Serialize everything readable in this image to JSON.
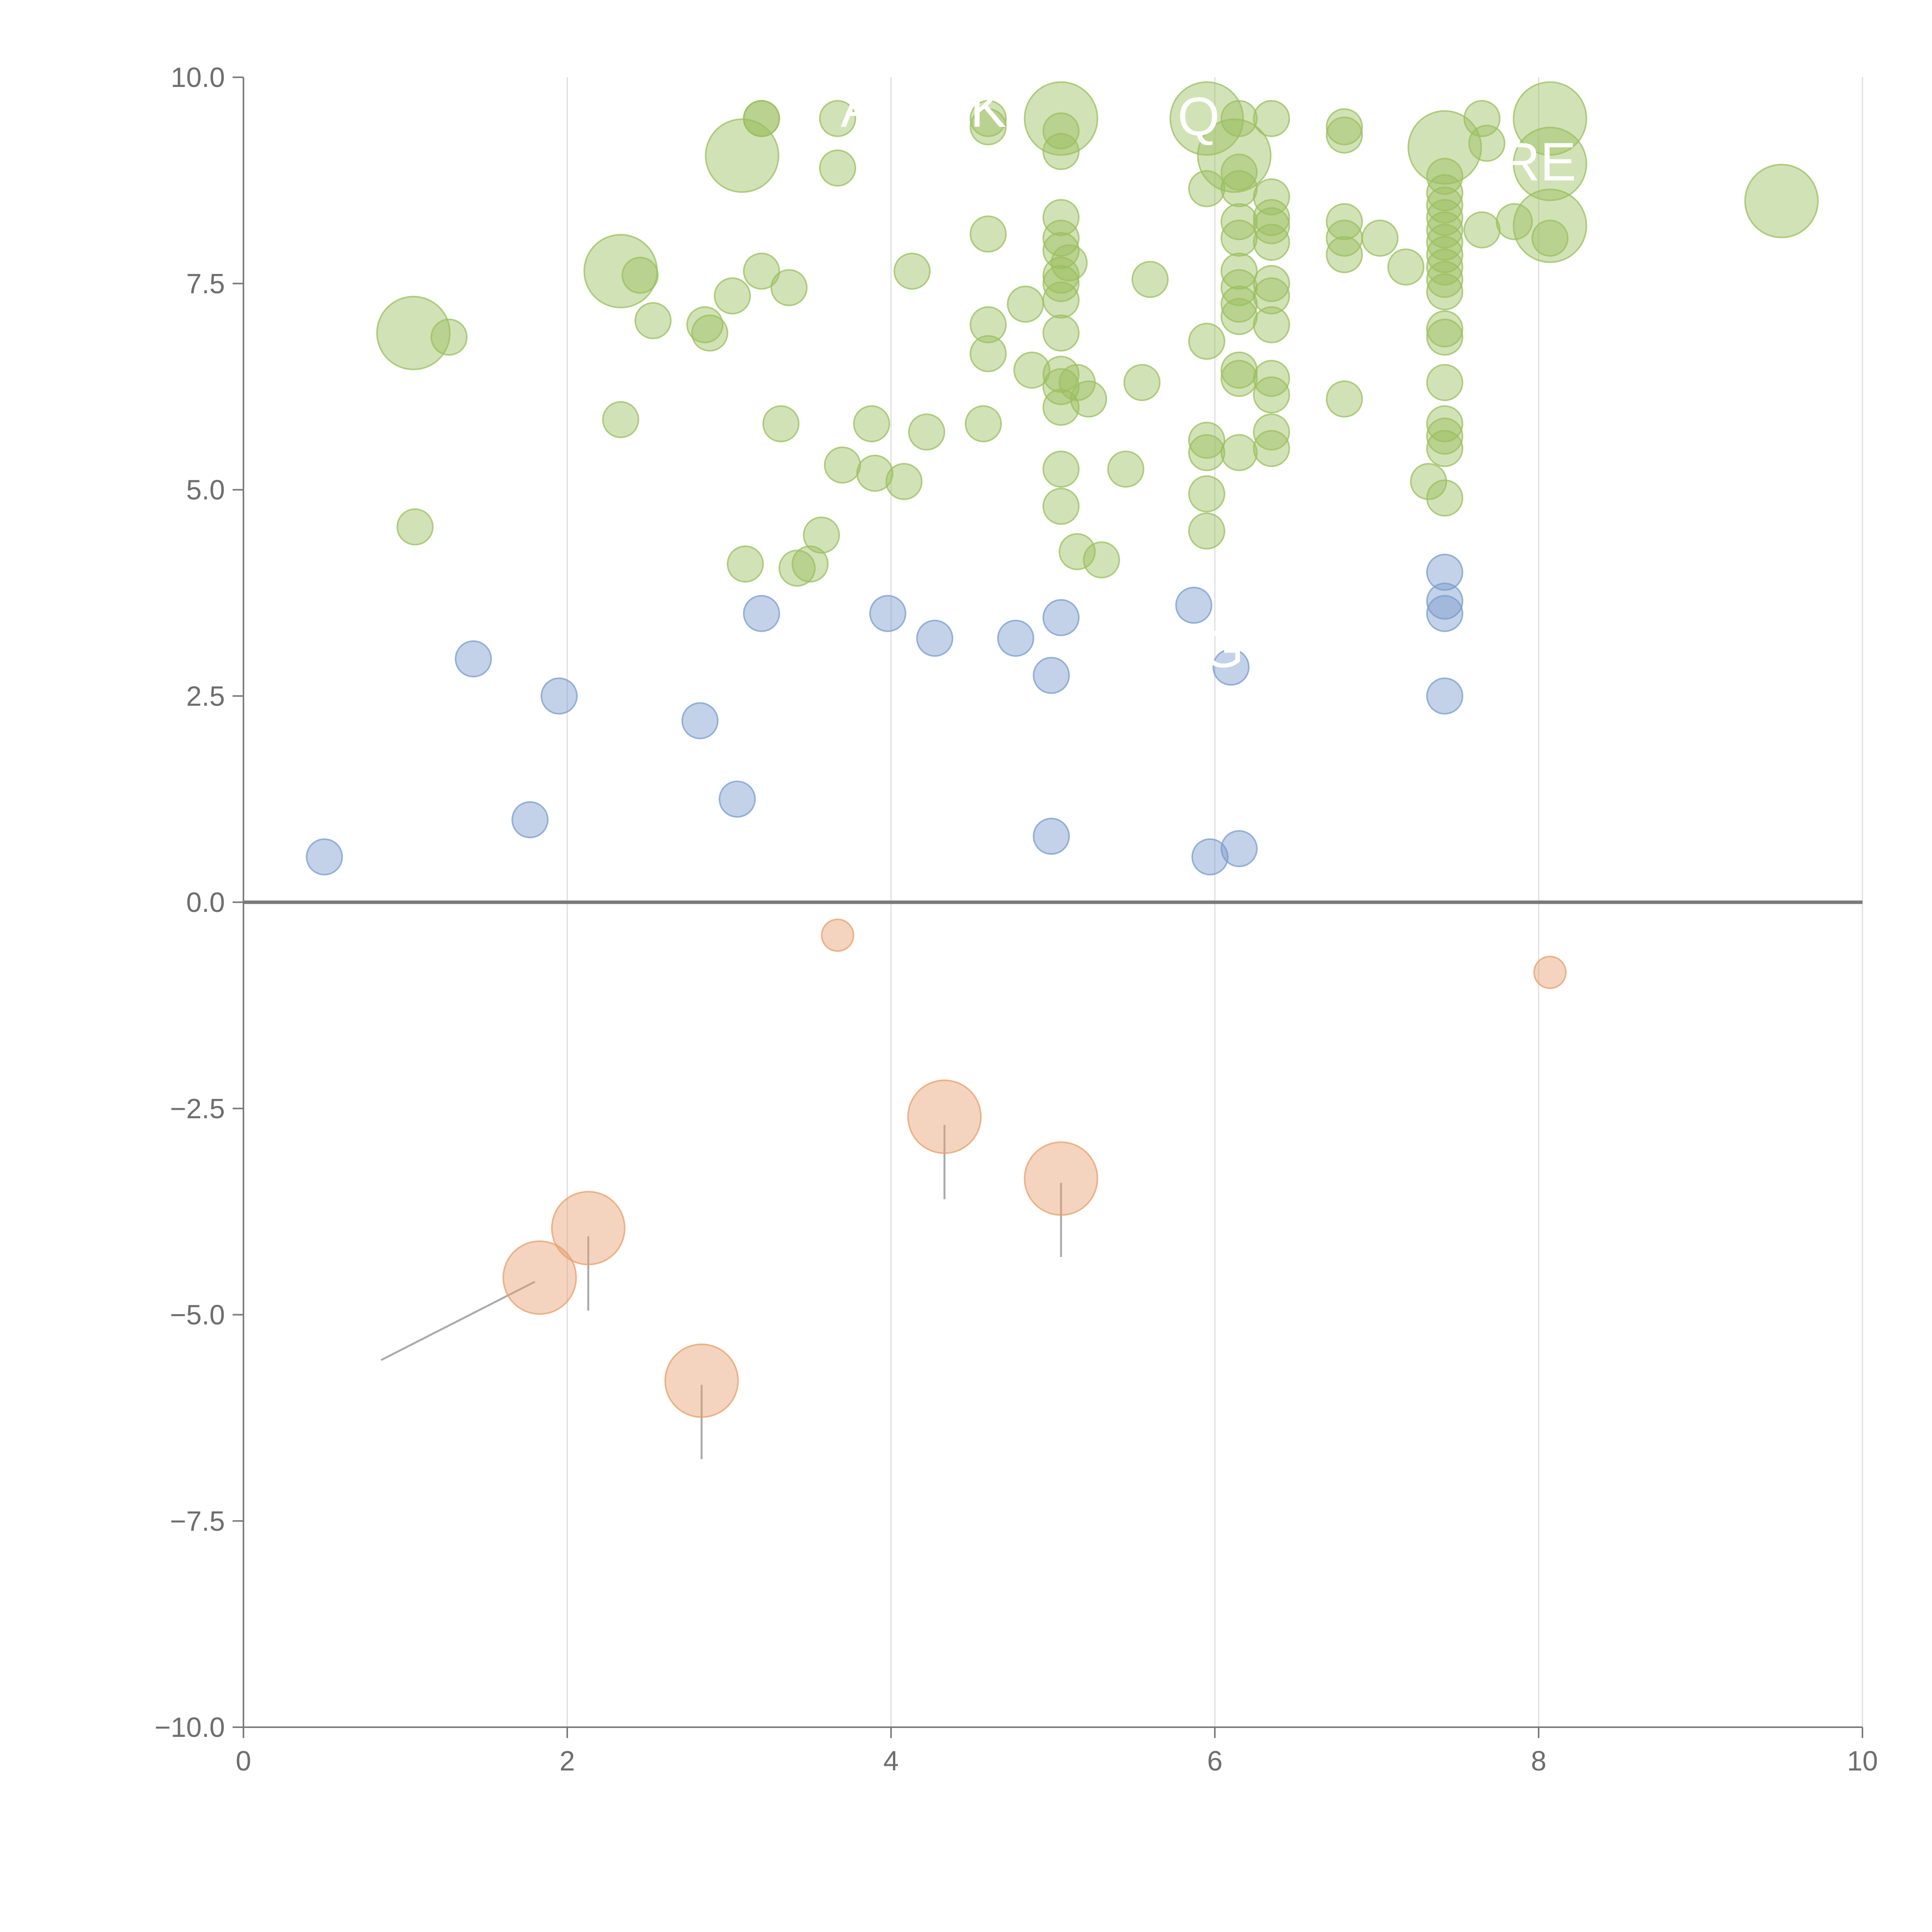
{
  "chart_data": {
    "type": "scatter",
    "title": "",
    "xlabel": "",
    "ylabel": "",
    "xlim": [
      0,
      10
    ],
    "ylim": [
      -10,
      10
    ],
    "xticks": [
      0,
      2,
      4,
      6,
      8,
      10
    ],
    "yticks": [
      -10,
      -7.5,
      -5,
      -2.5,
      0,
      2.5,
      5,
      7.5,
      10
    ],
    "xtick_labels": [
      "0",
      "2",
      "4",
      "6",
      "8",
      "10"
    ],
    "ytick_labels": [
      "−10.0",
      "−7.5",
      "−5.0",
      "−2.5",
      "0.0",
      "2.5",
      "5.0",
      "7.5",
      "10.0"
    ],
    "grid": "vertical",
    "reference_line_y": 0,
    "colors": {
      "green": "#9bbf5f",
      "blue": "#7a9ccd",
      "orange": "#e6a06e"
    },
    "series": [
      {
        "name": "green",
        "color_key": "green",
        "points": [
          {
            "x": 3.2,
            "y": 9.5,
            "s": 1
          },
          {
            "x": 3.2,
            "y": 9.5,
            "s": 1
          },
          {
            "x": 3.67,
            "y": 9.5,
            "s": 1
          },
          {
            "x": 3.67,
            "y": 8.9,
            "s": 1
          },
          {
            "x": 3.08,
            "y": 9.05,
            "s": 2
          },
          {
            "x": 4.6,
            "y": 9.5,
            "s": 1
          },
          {
            "x": 4.6,
            "y": 9.4,
            "s": 1
          },
          {
            "x": 5.05,
            "y": 9.5,
            "s": 2
          },
          {
            "x": 5.05,
            "y": 9.35,
            "s": 1
          },
          {
            "x": 5.05,
            "y": 9.1,
            "s": 1
          },
          {
            "x": 5.95,
            "y": 9.5,
            "s": 2
          },
          {
            "x": 6.15,
            "y": 9.5,
            "s": 1
          },
          {
            "x": 6.35,
            "y": 9.5,
            "s": 1
          },
          {
            "x": 6.12,
            "y": 9.05,
            "s": 2
          },
          {
            "x": 6.8,
            "y": 9.4,
            "s": 1
          },
          {
            "x": 6.8,
            "y": 9.3,
            "s": 1
          },
          {
            "x": 7.42,
            "y": 9.15,
            "s": 2
          },
          {
            "x": 7.65,
            "y": 9.5,
            "s": 1
          },
          {
            "x": 7.68,
            "y": 9.2,
            "s": 1
          },
          {
            "x": 8.07,
            "y": 9.5,
            "s": 2
          },
          {
            "x": 8.07,
            "y": 8.95,
            "s": 2
          },
          {
            "x": 8.07,
            "y": 8.2,
            "s": 2
          },
          {
            "x": 9.5,
            "y": 8.5,
            "s": 2
          },
          {
            "x": 5.95,
            "y": 8.65,
            "s": 1
          },
          {
            "x": 6.15,
            "y": 8.85,
            "s": 1
          },
          {
            "x": 6.15,
            "y": 8.65,
            "s": 1
          },
          {
            "x": 6.35,
            "y": 8.55,
            "s": 1
          },
          {
            "x": 6.35,
            "y": 8.3,
            "s": 1
          },
          {
            "x": 6.35,
            "y": 8.2,
            "s": 1
          },
          {
            "x": 6.35,
            "y": 8.0,
            "s": 1
          },
          {
            "x": 6.15,
            "y": 8.25,
            "s": 1
          },
          {
            "x": 6.15,
            "y": 8.05,
            "s": 1
          },
          {
            "x": 5.05,
            "y": 8.3,
            "s": 1
          },
          {
            "x": 5.05,
            "y": 8.05,
            "s": 1
          },
          {
            "x": 5.05,
            "y": 7.9,
            "s": 1
          },
          {
            "x": 5.1,
            "y": 7.75,
            "s": 1
          },
          {
            "x": 5.05,
            "y": 7.6,
            "s": 1
          },
          {
            "x": 5.05,
            "y": 7.5,
            "s": 1
          },
          {
            "x": 5.05,
            "y": 7.3,
            "s": 1
          },
          {
            "x": 4.6,
            "y": 8.1,
            "s": 1
          },
          {
            "x": 4.13,
            "y": 7.65,
            "s": 1
          },
          {
            "x": 3.2,
            "y": 7.65,
            "s": 1
          },
          {
            "x": 3.37,
            "y": 7.45,
            "s": 1
          },
          {
            "x": 3.02,
            "y": 7.35,
            "s": 1
          },
          {
            "x": 2.33,
            "y": 7.65,
            "s": 2
          },
          {
            "x": 2.45,
            "y": 7.6,
            "s": 1
          },
          {
            "x": 2.53,
            "y": 7.05,
            "s": 1
          },
          {
            "x": 2.85,
            "y": 7.0,
            "s": 1
          },
          {
            "x": 2.88,
            "y": 6.9,
            "s": 1
          },
          {
            "x": 1.05,
            "y": 6.9,
            "s": 2
          },
          {
            "x": 1.27,
            "y": 6.85,
            "s": 1
          },
          {
            "x": 6.8,
            "y": 8.25,
            "s": 1
          },
          {
            "x": 6.8,
            "y": 8.05,
            "s": 1
          },
          {
            "x": 6.8,
            "y": 7.85,
            "s": 1
          },
          {
            "x": 7.02,
            "y": 8.05,
            "s": 1
          },
          {
            "x": 7.18,
            "y": 7.7,
            "s": 1
          },
          {
            "x": 7.42,
            "y": 8.8,
            "s": 1
          },
          {
            "x": 7.42,
            "y": 8.6,
            "s": 1
          },
          {
            "x": 7.42,
            "y": 8.45,
            "s": 1
          },
          {
            "x": 7.42,
            "y": 8.3,
            "s": 1
          },
          {
            "x": 7.42,
            "y": 8.15,
            "s": 1
          },
          {
            "x": 7.42,
            "y": 8.0,
            "s": 1
          },
          {
            "x": 7.42,
            "y": 7.85,
            "s": 1
          },
          {
            "x": 7.42,
            "y": 7.7,
            "s": 1
          },
          {
            "x": 7.42,
            "y": 7.55,
            "s": 1
          },
          {
            "x": 7.42,
            "y": 7.4,
            "s": 1
          },
          {
            "x": 7.42,
            "y": 6.95,
            "s": 1
          },
          {
            "x": 7.42,
            "y": 6.85,
            "s": 1
          },
          {
            "x": 7.65,
            "y": 8.15,
            "s": 1
          },
          {
            "x": 7.85,
            "y": 8.25,
            "s": 1
          },
          {
            "x": 8.07,
            "y": 8.05,
            "s": 1
          },
          {
            "x": 6.15,
            "y": 7.65,
            "s": 1
          },
          {
            "x": 6.15,
            "y": 7.45,
            "s": 1
          },
          {
            "x": 6.15,
            "y": 7.25,
            "s": 1
          },
          {
            "x": 6.15,
            "y": 7.1,
            "s": 1
          },
          {
            "x": 6.35,
            "y": 7.5,
            "s": 1
          },
          {
            "x": 6.35,
            "y": 7.35,
            "s": 1
          },
          {
            "x": 6.35,
            "y": 7.0,
            "s": 1
          },
          {
            "x": 5.6,
            "y": 7.55,
            "s": 1
          },
          {
            "x": 4.83,
            "y": 7.25,
            "s": 1
          },
          {
            "x": 4.6,
            "y": 7.0,
            "s": 1
          },
          {
            "x": 4.6,
            "y": 6.65,
            "s": 1
          },
          {
            "x": 5.05,
            "y": 6.9,
            "s": 1
          },
          {
            "x": 5.95,
            "y": 6.8,
            "s": 1
          },
          {
            "x": 4.87,
            "y": 6.45,
            "s": 1
          },
          {
            "x": 5.05,
            "y": 6.4,
            "s": 1
          },
          {
            "x": 5.05,
            "y": 6.25,
            "s": 1
          },
          {
            "x": 5.15,
            "y": 6.3,
            "s": 1
          },
          {
            "x": 5.22,
            "y": 6.1,
            "s": 1
          },
          {
            "x": 5.05,
            "y": 6.0,
            "s": 1
          },
          {
            "x": 5.55,
            "y": 6.3,
            "s": 1
          },
          {
            "x": 6.15,
            "y": 6.45,
            "s": 1
          },
          {
            "x": 6.15,
            "y": 6.35,
            "s": 1
          },
          {
            "x": 6.35,
            "y": 6.35,
            "s": 1
          },
          {
            "x": 6.35,
            "y": 6.15,
            "s": 1
          },
          {
            "x": 6.8,
            "y": 6.1,
            "s": 1
          },
          {
            "x": 7.42,
            "y": 6.3,
            "s": 1
          },
          {
            "x": 7.42,
            "y": 5.8,
            "s": 1
          },
          {
            "x": 7.42,
            "y": 5.65,
            "s": 1
          },
          {
            "x": 7.42,
            "y": 5.5,
            "s": 1
          },
          {
            "x": 7.32,
            "y": 5.1,
            "s": 1
          },
          {
            "x": 7.42,
            "y": 4.9,
            "s": 1
          },
          {
            "x": 2.33,
            "y": 5.85,
            "s": 1
          },
          {
            "x": 3.32,
            "y": 5.8,
            "s": 1
          },
          {
            "x": 3.88,
            "y": 5.8,
            "s": 1
          },
          {
            "x": 4.22,
            "y": 5.7,
            "s": 1
          },
          {
            "x": 4.57,
            "y": 5.8,
            "s": 1
          },
          {
            "x": 3.7,
            "y": 5.3,
            "s": 1
          },
          {
            "x": 3.9,
            "y": 5.2,
            "s": 1
          },
          {
            "x": 4.08,
            "y": 5.1,
            "s": 1
          },
          {
            "x": 5.05,
            "y": 5.25,
            "s": 1
          },
          {
            "x": 5.45,
            "y": 5.25,
            "s": 1
          },
          {
            "x": 5.95,
            "y": 5.6,
            "s": 1
          },
          {
            "x": 5.95,
            "y": 5.45,
            "s": 1
          },
          {
            "x": 6.15,
            "y": 5.45,
            "s": 1
          },
          {
            "x": 6.35,
            "y": 5.7,
            "s": 1
          },
          {
            "x": 6.35,
            "y": 5.5,
            "s": 1
          },
          {
            "x": 5.95,
            "y": 4.95,
            "s": 1
          },
          {
            "x": 5.05,
            "y": 4.8,
            "s": 1
          },
          {
            "x": 5.95,
            "y": 4.5,
            "s": 1
          },
          {
            "x": 1.06,
            "y": 4.55,
            "s": 1
          },
          {
            "x": 3.57,
            "y": 4.45,
            "s": 1
          },
          {
            "x": 3.1,
            "y": 4.1,
            "s": 1
          },
          {
            "x": 3.42,
            "y": 4.05,
            "s": 1
          },
          {
            "x": 3.5,
            "y": 4.1,
            "s": 1
          },
          {
            "x": 5.15,
            "y": 4.25,
            "s": 1
          },
          {
            "x": 5.3,
            "y": 4.15,
            "s": 1
          }
        ]
      },
      {
        "name": "blue",
        "color_key": "blue",
        "points": [
          {
            "x": 7.42,
            "y": 4.0,
            "s": 1
          },
          {
            "x": 7.42,
            "y": 3.65,
            "s": 1
          },
          {
            "x": 7.42,
            "y": 3.5,
            "s": 1
          },
          {
            "x": 5.87,
            "y": 3.6,
            "s": 1
          },
          {
            "x": 3.2,
            "y": 3.5,
            "s": 1
          },
          {
            "x": 3.98,
            "y": 3.5,
            "s": 1
          },
          {
            "x": 5.05,
            "y": 3.45,
            "s": 1
          },
          {
            "x": 4.27,
            "y": 3.2,
            "s": 1
          },
          {
            "x": 4.77,
            "y": 3.2,
            "s": 1
          },
          {
            "x": 1.42,
            "y": 2.95,
            "s": 1
          },
          {
            "x": 6.1,
            "y": 2.85,
            "s": 1
          },
          {
            "x": 4.99,
            "y": 2.75,
            "s": 1
          },
          {
            "x": 1.95,
            "y": 2.5,
            "s": 1
          },
          {
            "x": 7.42,
            "y": 2.5,
            "s": 1
          },
          {
            "x": 2.82,
            "y": 2.2,
            "s": 1
          },
          {
            "x": 3.05,
            "y": 1.25,
            "s": 1
          },
          {
            "x": 1.77,
            "y": 1.0,
            "s": 1
          },
          {
            "x": 4.99,
            "y": 0.8,
            "s": 1
          },
          {
            "x": 0.5,
            "y": 0.55,
            "s": 1
          },
          {
            "x": 5.97,
            "y": 0.55,
            "s": 1
          },
          {
            "x": 6.15,
            "y": 0.65,
            "s": 1
          }
        ]
      },
      {
        "name": "orange",
        "color_key": "orange",
        "points": [
          {
            "x": 3.67,
            "y": -0.4,
            "s": 0.8
          },
          {
            "x": 8.07,
            "y": -0.85,
            "s": 0.8
          },
          {
            "x": 4.33,
            "y": -2.6,
            "s": 2
          },
          {
            "x": 5.05,
            "y": -3.35,
            "s": 2
          },
          {
            "x": 2.13,
            "y": -3.95,
            "s": 2
          },
          {
            "x": 1.83,
            "y": -4.55,
            "s": 2
          },
          {
            "x": 2.83,
            "y": -5.8,
            "s": 2
          }
        ]
      }
    ],
    "annotations": [
      {
        "text": "A",
        "x": 3.8,
        "y": 9.4
      },
      {
        "text": "K",
        "x": 4.6,
        "y": 9.4
      },
      {
        "text": "Q",
        "x": 5.9,
        "y": 9.3
      },
      {
        "text": "RE",
        "x": 8.0,
        "y": 8.75
      },
      {
        "text": "G",
        "x": 6.05,
        "y": 2.85
      }
    ],
    "leaders": [
      {
        "x1": 0.85,
        "y1": -5.55,
        "x2": 1.8,
        "y2": -4.6
      },
      {
        "x1": 2.13,
        "y1": -4.05,
        "x2": 2.13,
        "y2": -4.95
      },
      {
        "x1": 2.83,
        "y1": -5.85,
        "x2": 2.83,
        "y2": -6.75
      },
      {
        "x1": 4.33,
        "y1": -2.7,
        "x2": 4.33,
        "y2": -3.6
      },
      {
        "x1": 5.05,
        "y1": -3.4,
        "x2": 5.05,
        "y2": -4.3
      }
    ]
  }
}
